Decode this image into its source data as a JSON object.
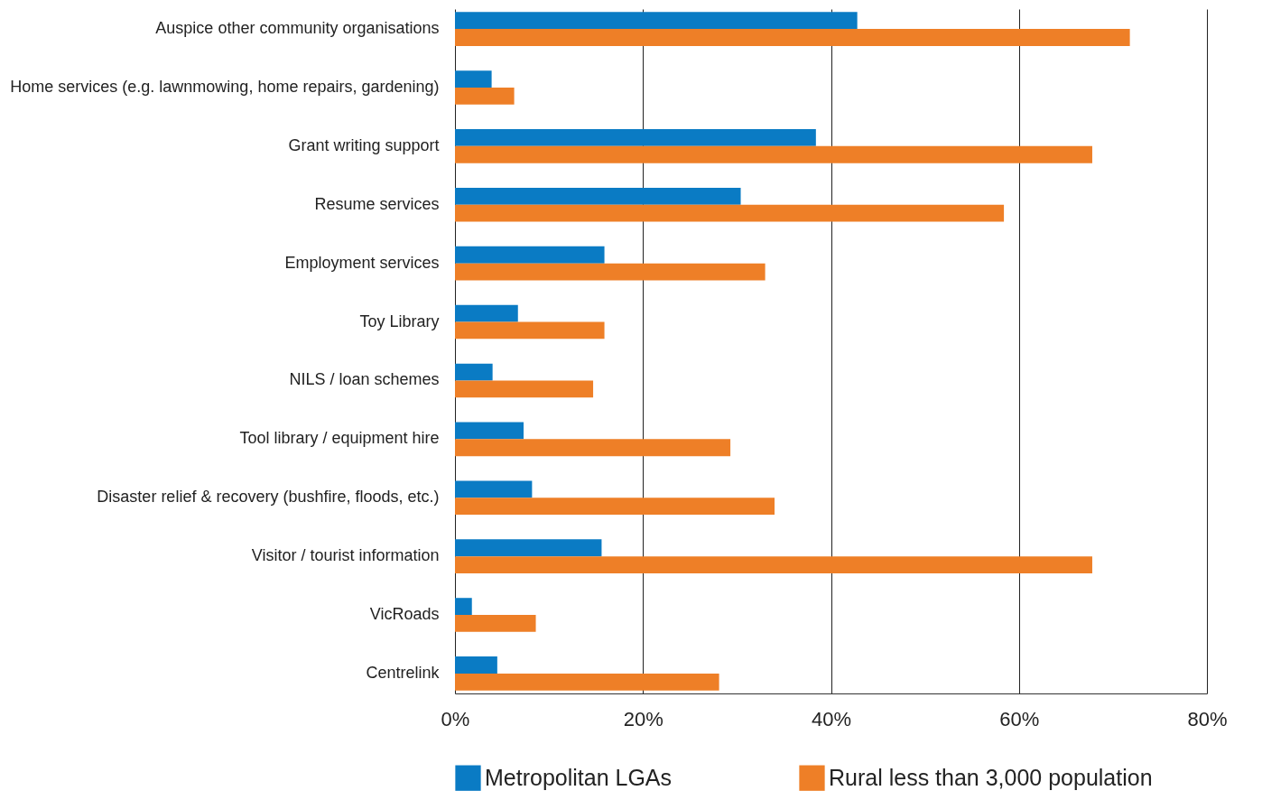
{
  "chart_data": {
    "type": "bar",
    "orientation": "horizontal",
    "categories": [
      "Auspice other community organisations",
      "Home services (e.g. lawnmowing, home repairs, gardening)",
      "Grant writing support",
      "Resume services",
      "Employment services",
      "Toy Library",
      "NILS / loan schemes",
      "Tool library / equipment hire",
      "Disaster relief & recovery (bushfire, floods, etc.)",
      "Visitor / tourist information",
      "VicRoads",
      "Centrelink"
    ],
    "series": [
      {
        "name": "Metropolitan LGAs",
        "color": "#0a7bc4",
        "values": [
          42.8,
          3.9,
          38.4,
          30.4,
          15.9,
          6.7,
          4.0,
          7.3,
          8.2,
          15.6,
          1.8,
          4.5
        ]
      },
      {
        "name": "Rural less than 3,000 population",
        "color": "#ee7f27",
        "values": [
          71.8,
          6.3,
          67.8,
          58.4,
          33.0,
          15.9,
          14.7,
          29.3,
          34.0,
          67.8,
          8.6,
          28.1
        ]
      }
    ],
    "xlim": [
      0,
      80
    ],
    "xticks": [
      {
        "value": 0,
        "label": "0%"
      },
      {
        "value": 20,
        "label": "20%"
      },
      {
        "value": 40,
        "label": "40%"
      },
      {
        "value": 60,
        "label": "60%"
      },
      {
        "value": 80,
        "label": "80%"
      }
    ],
    "grid": "x",
    "legend": "bottom"
  }
}
